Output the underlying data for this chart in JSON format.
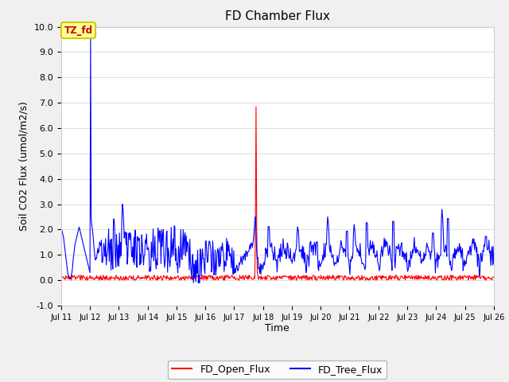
{
  "title": "FD Chamber Flux",
  "xlabel": "Time",
  "ylabel": "Soil CO2 Flux (umol/m2/s)",
  "ylim": [
    -1.0,
    10.0
  ],
  "yticks": [
    -1.0,
    0.0,
    1.0,
    2.0,
    3.0,
    4.0,
    5.0,
    6.0,
    7.0,
    8.0,
    9.0,
    10.0
  ],
  "ytick_labels": [
    "-1.0",
    "0.0",
    "1.0",
    "2.0",
    "3.0",
    "4.0",
    "5.0",
    "6.0",
    "7.0",
    "8.0",
    "9.0",
    "10.0"
  ],
  "x_start_day": 11,
  "x_end_day": 26,
  "xtick_days": [
    11,
    12,
    13,
    14,
    15,
    16,
    17,
    18,
    19,
    20,
    21,
    22,
    23,
    24,
    25,
    26
  ],
  "xtick_labels": [
    "Jul 11",
    "Jul 12",
    "Jul 13",
    "Jul 14",
    "Jul 15",
    "Jul 16",
    "Jul 17",
    "Jul 18",
    "Jul 19",
    "Jul 20",
    "Jul 21",
    "Jul 22",
    "Jul 23",
    "Jul 24",
    "Jul 25",
    "Jul 26"
  ],
  "fig_bg_color": "#f0f0f0",
  "plot_bg_color": "#ffffff",
  "grid_color": "#e0e0e0",
  "line_color_open": "#ff0000",
  "line_color_tree": "#0000ff",
  "legend_label_open": "FD_Open_Flux",
  "legend_label_tree": "FD_Tree_Flux",
  "annotation_text": "TZ_fd",
  "annotation_color": "#cc0000",
  "annotation_bg": "#ffff99",
  "annotation_border": "#cccc00",
  "title_fontsize": 11,
  "axis_fontsize": 9,
  "tick_fontsize": 8
}
